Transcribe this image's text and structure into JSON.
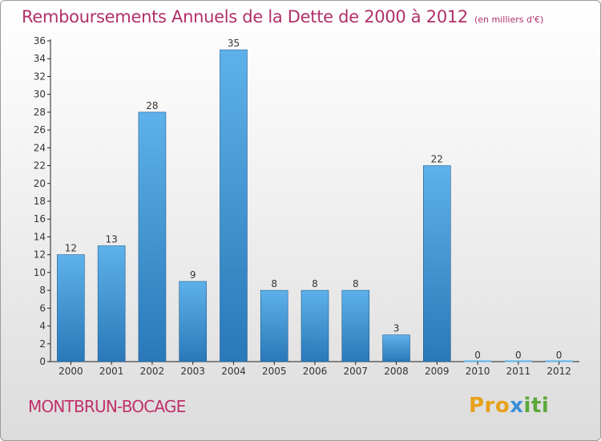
{
  "header": {
    "title": "Remboursements Annuels de la Dette de 2000 à 2012",
    "unit": "(en milliers d'€)"
  },
  "footer": {
    "location": "MONTBRUN-BOCAGE",
    "logo": {
      "part1": "Pro",
      "part2": "x",
      "part3": "iti"
    }
  },
  "colors": {
    "title": "#b0306a",
    "bar_top": "#5eb1ea",
    "bar_bottom": "#2a78b8",
    "axis": "#222222"
  },
  "chart_data": {
    "type": "bar",
    "title": "Remboursements Annuels de la Dette de 2000 à 2012",
    "xlabel": "",
    "ylabel": "",
    "categories": [
      "2000",
      "2001",
      "2002",
      "2003",
      "2004",
      "2005",
      "2006",
      "2007",
      "2008",
      "2009",
      "2010",
      "2011",
      "2012"
    ],
    "values": [
      12,
      13,
      28,
      9,
      35,
      8,
      8,
      8,
      3,
      22,
      0,
      0,
      0
    ],
    "ylim": [
      0,
      36
    ],
    "yticks": [
      0,
      2,
      4,
      6,
      8,
      10,
      12,
      14,
      16,
      18,
      20,
      22,
      24,
      26,
      28,
      30,
      32,
      34,
      36
    ],
    "grid": false,
    "data_labels": true
  }
}
